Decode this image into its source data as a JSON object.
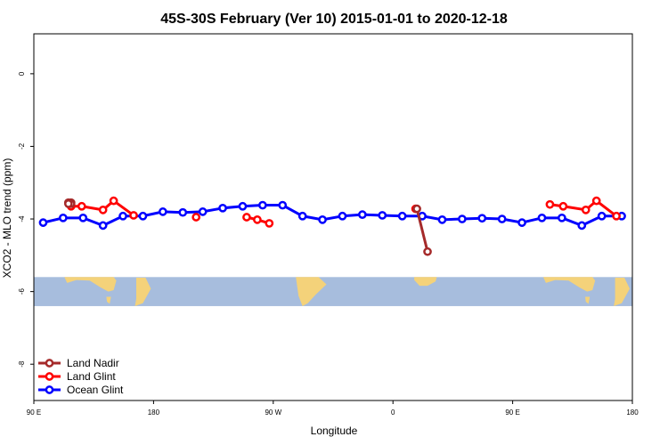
{
  "chart_data": {
    "type": "line",
    "title": "45S-30S February (Ver 10)   2015-01-01 to 2020-12-18",
    "xlabel": "Longitude",
    "ylabel": "XCO2 - MLO trend (ppm)",
    "xlim": [
      90,
      540
    ],
    "ylim": [
      -9,
      1.1
    ],
    "x_ticks": [
      {
        "value": 90,
        "label": "90 E"
      },
      {
        "value": 180,
        "label": "180"
      },
      {
        "value": 270,
        "label": "90 W"
      },
      {
        "value": 360,
        "label": "0"
      },
      {
        "value": 450,
        "label": "90 E"
      },
      {
        "value": 540,
        "label": "180"
      }
    ],
    "y_ticks": [
      {
        "value": 0,
        "label": "0"
      },
      {
        "value": -2,
        "label": "-2"
      },
      {
        "value": -4,
        "label": "-4"
      },
      {
        "value": -6,
        "label": "-6"
      },
      {
        "value": -8,
        "label": "-8"
      }
    ],
    "background_map": {
      "description_colors": {
        "ocean": "#a7bddd",
        "land": "#f4d27a"
      },
      "y_range": [
        -6.4,
        -5.6
      ]
    },
    "legend_position": "bottom-left",
    "series": [
      {
        "name": "Land Nadir",
        "color": "#a52a2a",
        "segments": [
          [
            [
              118,
              -3.55
            ],
            [
              118,
              -3.58
            ]
          ],
          [
            [
              116,
              -3.55
            ],
            [
              116,
              -3.58
            ]
          ],
          [
            [
              378,
              -3.72
            ],
            [
              386,
              -4.9
            ]
          ]
        ]
      },
      {
        "name": "Land Glint",
        "color": "#ff0000",
        "segments": [
          [
            [
              118,
              -3.65
            ],
            [
              126,
              -3.65
            ],
            [
              142,
              -3.75
            ],
            [
              150,
              -3.5
            ],
            [
              165,
              -3.9
            ]
          ],
          [
            [
              212,
              -3.95
            ]
          ],
          [
            [
              250,
              -3.95
            ],
            [
              258,
              -4.02
            ],
            [
              267,
              -4.12
            ]
          ],
          [
            [
              377,
              -3.72
            ]
          ],
          [
            [
              478,
              -3.6
            ],
            [
              488,
              -3.65
            ],
            [
              505,
              -3.75
            ],
            [
              513,
              -3.5
            ],
            [
              528,
              -3.92
            ]
          ]
        ]
      },
      {
        "name": "Ocean Glint",
        "color": "#0000ff",
        "segments": [
          [
            [
              97,
              -4.1
            ],
            [
              112,
              -3.97
            ],
            [
              127,
              -3.97
            ],
            [
              142,
              -4.18
            ],
            [
              157,
              -3.92
            ],
            [
              172,
              -3.92
            ],
            [
              187,
              -3.8
            ],
            [
              202,
              -3.82
            ],
            [
              217,
              -3.8
            ],
            [
              232,
              -3.7
            ],
            [
              247,
              -3.65
            ],
            [
              262,
              -3.62
            ],
            [
              277,
              -3.62
            ],
            [
              292,
              -3.92
            ],
            [
              307,
              -4.02
            ],
            [
              322,
              -3.92
            ],
            [
              337,
              -3.88
            ],
            [
              352,
              -3.9
            ],
            [
              367,
              -3.92
            ],
            [
              382,
              -3.92
            ],
            [
              397,
              -4.02
            ],
            [
              412,
              -4.0
            ],
            [
              427,
              -3.98
            ],
            [
              442,
              -4.0
            ],
            [
              457,
              -4.1
            ],
            [
              472,
              -3.97
            ],
            [
              487,
              -3.97
            ],
            [
              502,
              -4.18
            ],
            [
              517,
              -3.92
            ],
            [
              532,
              -3.92
            ]
          ]
        ]
      }
    ]
  }
}
